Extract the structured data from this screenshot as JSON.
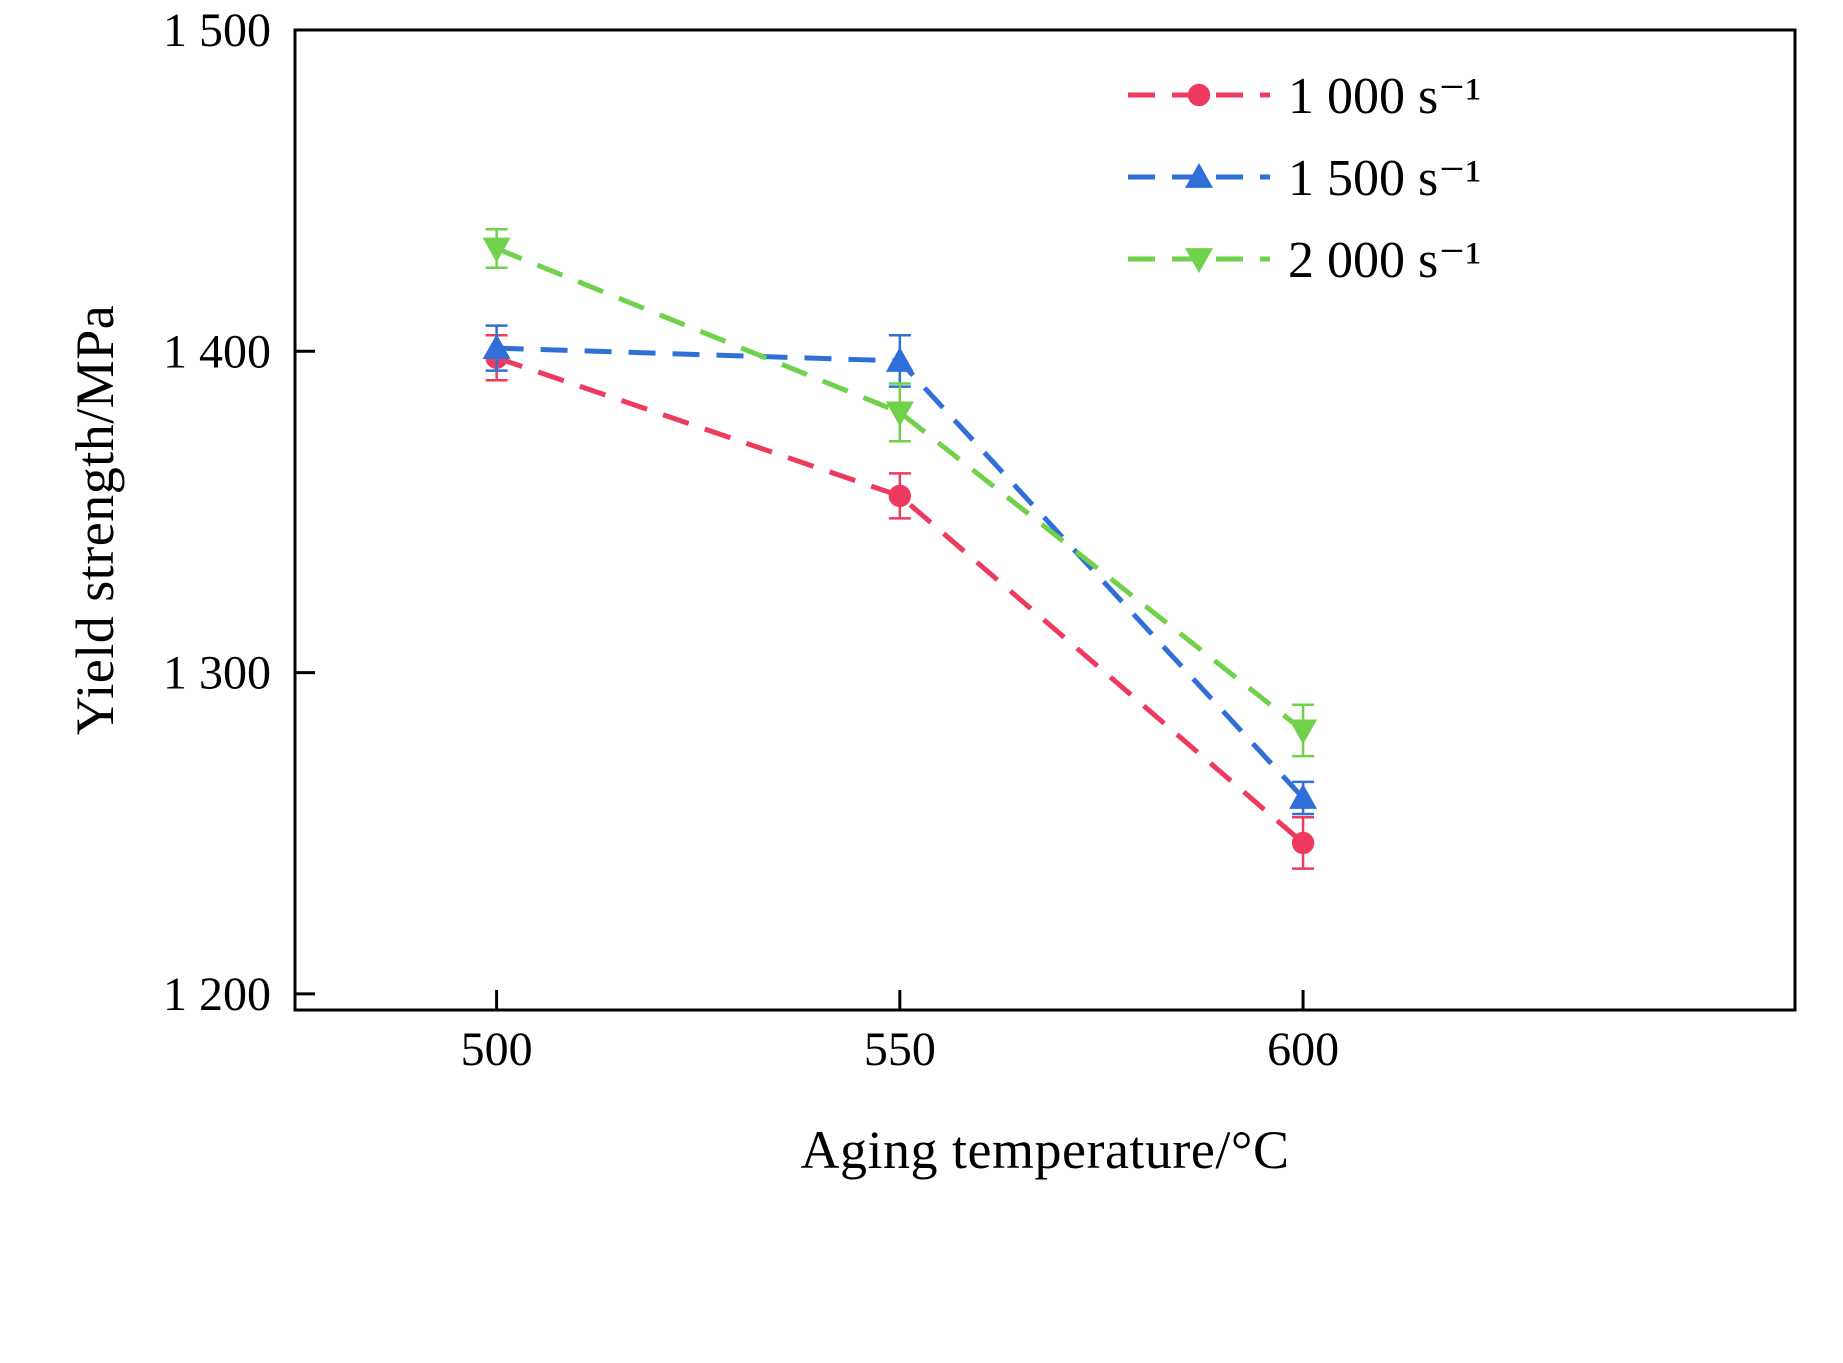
{
  "chart_data": {
    "type": "line",
    "title": "",
    "xlabel": "Aging temperature/°C",
    "ylabel": "Yield strength/MPa",
    "xlim": [
      475,
      661
    ],
    "ylim": [
      1195,
      1500
    ],
    "grid": false,
    "legend_position": "top-right",
    "line_style": "dashed",
    "x_ticks": [
      {
        "value": 500,
        "label": "500"
      },
      {
        "value": 550,
        "label": "550"
      },
      {
        "value": 600,
        "label": "600"
      }
    ],
    "y_ticks": [
      {
        "value": 1200,
        "label": "1 200"
      },
      {
        "value": 1300,
        "label": "1 300"
      },
      {
        "value": 1400,
        "label": "1 400"
      },
      {
        "value": 1500,
        "label": "1 500"
      }
    ],
    "x": [
      500,
      550,
      600
    ],
    "series": [
      {
        "name": "1 000 s⁻¹",
        "color": "#ee3a5f",
        "marker": "circle",
        "values": [
          1398,
          1355,
          1247
        ],
        "errors": [
          7,
          7,
          8
        ]
      },
      {
        "name": "1 500 s⁻¹",
        "color": "#2e6fd8",
        "marker": "triangle-up",
        "values": [
          1401,
          1397,
          1261
        ],
        "errors": [
          7,
          8,
          5
        ]
      },
      {
        "name": "2 000 s⁻¹",
        "color": "#6fd24a",
        "marker": "triangle-down",
        "values": [
          1432,
          1381,
          1282
        ],
        "errors": [
          6,
          9,
          8
        ]
      }
    ]
  }
}
